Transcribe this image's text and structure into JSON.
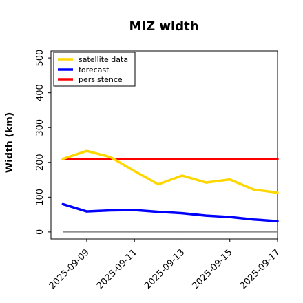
{
  "chart_data": {
    "type": "line",
    "title": "MIZ width",
    "xlabel": "",
    "ylabel": "Width (km)",
    "ylim": [
      -20,
      520
    ],
    "xlim": [
      "2025-09-07 12:00",
      "2025-09-17"
    ],
    "yticks": [
      0,
      100,
      200,
      300,
      400,
      500
    ],
    "xticks": [
      "2025-09-09",
      "2025-09-11",
      "2025-09-13",
      "2025-09-15",
      "2025-09-17"
    ],
    "highlight_tick": "2025-09-09",
    "highlight_color": "#228b22",
    "grid": false,
    "legend_position": "top-left",
    "baseline": {
      "value": 0,
      "color": "#808080",
      "x_start": "2025-09-08",
      "x_end": "2025-09-17"
    },
    "series": [
      {
        "name": "satellite data",
        "color": "#ffd700",
        "x": [
          "2025-09-08",
          "2025-09-09",
          "2025-09-10",
          "2025-09-11",
          "2025-09-12",
          "2025-09-13",
          "2025-09-14",
          "2025-09-15",
          "2025-09-16",
          "2025-09-17"
        ],
        "y": [
          210,
          233,
          215,
          175,
          137,
          162,
          142,
          151,
          122,
          113
        ]
      },
      {
        "name": "forecast",
        "color": "#0000ff",
        "x": [
          "2025-09-08",
          "2025-09-09",
          "2025-09-10",
          "2025-09-11",
          "2025-09-12",
          "2025-09-13",
          "2025-09-14",
          "2025-09-15",
          "2025-09-16",
          "2025-09-17"
        ],
        "y": [
          80,
          59,
          62,
          63,
          58,
          54,
          47,
          43,
          36,
          31
        ]
      },
      {
        "name": "persistence",
        "color": "#ff0000",
        "x": [
          "2025-09-08",
          "2025-09-09",
          "2025-09-10",
          "2025-09-11",
          "2025-09-12",
          "2025-09-13",
          "2025-09-14",
          "2025-09-15",
          "2025-09-16",
          "2025-09-17"
        ],
        "y": [
          210,
          210,
          210,
          210,
          210,
          210,
          210,
          210,
          210,
          210
        ]
      }
    ]
  }
}
